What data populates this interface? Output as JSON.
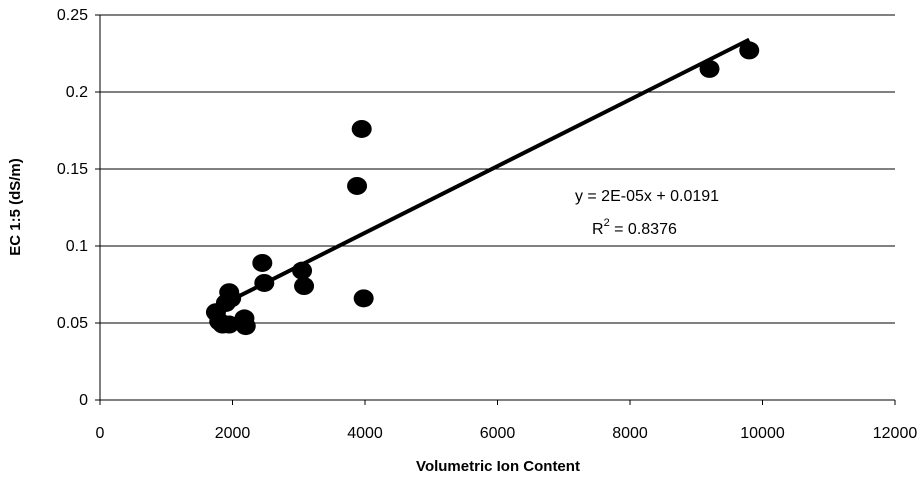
{
  "chart_data": {
    "type": "scatter",
    "xlabel": "Volumetric Ion Content",
    "ylabel": "EC 1:5 (dS/m)",
    "xlim": [
      0,
      12000
    ],
    "ylim": [
      0,
      0.25
    ],
    "x_ticks": [
      0,
      2000,
      4000,
      6000,
      8000,
      10000,
      12000
    ],
    "x_tick_labels": [
      "0",
      "2000",
      "4000",
      "6000",
      "8000",
      "10000",
      "12000"
    ],
    "y_ticks": [
      0,
      0.05,
      0.1,
      0.15,
      0.2,
      0.25
    ],
    "y_tick_labels": [
      "0",
      "0.05",
      "0.1",
      "0.15",
      "0.2",
      "0.25"
    ],
    "grid": "horizontal",
    "legend": "none",
    "series": [
      {
        "points": [
          {
            "x": 1750,
            "y": 0.057
          },
          {
            "x": 1800,
            "y": 0.051
          },
          {
            "x": 1850,
            "y": 0.049
          },
          {
            "x": 1900,
            "y": 0.063
          },
          {
            "x": 1950,
            "y": 0.049
          },
          {
            "x": 1950,
            "y": 0.07
          },
          {
            "x": 1980,
            "y": 0.066
          },
          {
            "x": 2180,
            "y": 0.053
          },
          {
            "x": 2200,
            "y": 0.048
          },
          {
            "x": 2450,
            "y": 0.089
          },
          {
            "x": 2480,
            "y": 0.076
          },
          {
            "x": 3050,
            "y": 0.084
          },
          {
            "x": 3080,
            "y": 0.074
          },
          {
            "x": 3880,
            "y": 0.139
          },
          {
            "x": 3950,
            "y": 0.176
          },
          {
            "x": 3980,
            "y": 0.066
          },
          {
            "x": 9200,
            "y": 0.215
          },
          {
            "x": 9800,
            "y": 0.227
          }
        ],
        "color": "#000000"
      }
    ],
    "trendline": {
      "x_start": 1800,
      "x_end": 9800,
      "y_start": 0.061,
      "y_end": 0.234,
      "equation": "y = 2E-05x + 0.0191",
      "r2_prefix": "R",
      "r2_sup": "2",
      "r2_suffix": " = 0.8376"
    },
    "colors": {
      "marker": "#000000",
      "line": "#000000",
      "grid": "#000000"
    }
  }
}
